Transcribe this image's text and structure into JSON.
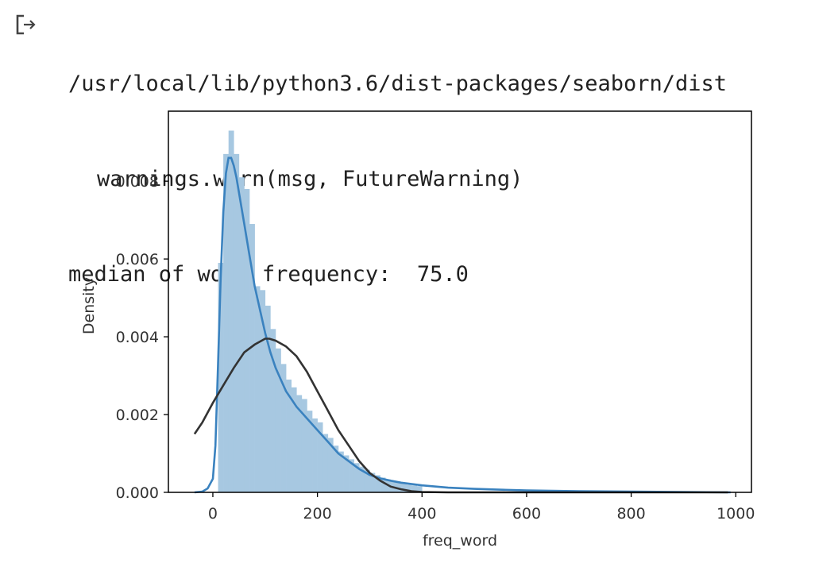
{
  "output": {
    "icon": "output-arrow-icon",
    "lines": [
      "/usr/local/lib/python3.6/dist-packages/seaborn/dist",
      "warnings.warn(msg, FutureWarning)",
      "median of word frequency:  75.0"
    ]
  },
  "chart_data": {
    "type": "histogram",
    "xlabel": "freq_word",
    "ylabel": "Density",
    "xlim": [
      -85,
      1030
    ],
    "ylim": [
      0,
      0.0098
    ],
    "xticks": [
      0,
      200,
      400,
      600,
      800,
      1000
    ],
    "xtick_labels": [
      "0",
      "200",
      "400",
      "600",
      "800",
      "1000"
    ],
    "yticks": [
      0,
      0.002,
      0.004,
      0.006,
      0.008
    ],
    "ytick_labels": [
      "0.000",
      "0.002",
      "0.004",
      "0.006",
      "0.008"
    ],
    "grid": false,
    "hist": {
      "color": "#a7c8e1",
      "bins": [
        {
          "x0": 10,
          "x1": 20,
          "density": 0.0059
        },
        {
          "x0": 20,
          "x1": 30,
          "density": 0.0087
        },
        {
          "x0": 30,
          "x1": 40,
          "density": 0.0093
        },
        {
          "x0": 40,
          "x1": 50,
          "density": 0.0087
        },
        {
          "x0": 50,
          "x1": 60,
          "density": 0.0081
        },
        {
          "x0": 60,
          "x1": 70,
          "density": 0.0078
        },
        {
          "x0": 70,
          "x1": 80,
          "density": 0.0069
        },
        {
          "x0": 80,
          "x1": 90,
          "density": 0.0053
        },
        {
          "x0": 90,
          "x1": 100,
          "density": 0.0052
        },
        {
          "x0": 100,
          "x1": 110,
          "density": 0.0048
        },
        {
          "x0": 110,
          "x1": 120,
          "density": 0.0042
        },
        {
          "x0": 120,
          "x1": 130,
          "density": 0.0037
        },
        {
          "x0": 130,
          "x1": 140,
          "density": 0.0033
        },
        {
          "x0": 140,
          "x1": 150,
          "density": 0.0029
        },
        {
          "x0": 150,
          "x1": 160,
          "density": 0.0027
        },
        {
          "x0": 160,
          "x1": 170,
          "density": 0.0025
        },
        {
          "x0": 170,
          "x1": 180,
          "density": 0.0024
        },
        {
          "x0": 180,
          "x1": 190,
          "density": 0.0021
        },
        {
          "x0": 190,
          "x1": 200,
          "density": 0.0019
        },
        {
          "x0": 200,
          "x1": 210,
          "density": 0.0018
        },
        {
          "x0": 210,
          "x1": 220,
          "density": 0.0015
        },
        {
          "x0": 220,
          "x1": 230,
          "density": 0.0014
        },
        {
          "x0": 230,
          "x1": 240,
          "density": 0.0012
        },
        {
          "x0": 240,
          "x1": 250,
          "density": 0.00105
        },
        {
          "x0": 250,
          "x1": 260,
          "density": 0.00095
        },
        {
          "x0": 260,
          "x1": 270,
          "density": 0.00085
        },
        {
          "x0": 270,
          "x1": 280,
          "density": 0.00075
        },
        {
          "x0": 280,
          "x1": 290,
          "density": 0.00066
        },
        {
          "x0": 290,
          "x1": 300,
          "density": 0.00058
        },
        {
          "x0": 300,
          "x1": 310,
          "density": 0.0005
        },
        {
          "x0": 310,
          "x1": 320,
          "density": 0.00044
        },
        {
          "x0": 320,
          "x1": 330,
          "density": 0.00038
        },
        {
          "x0": 330,
          "x1": 340,
          "density": 0.00033
        },
        {
          "x0": 340,
          "x1": 350,
          "density": 0.00029
        },
        {
          "x0": 350,
          "x1": 360,
          "density": 0.00026
        },
        {
          "x0": 360,
          "x1": 370,
          "density": 0.00023
        },
        {
          "x0": 370,
          "x1": 380,
          "density": 0.0002
        },
        {
          "x0": 380,
          "x1": 390,
          "density": 0.00018
        },
        {
          "x0": 390,
          "x1": 400,
          "density": 0.00016
        }
      ]
    },
    "series": [
      {
        "kind": "kde",
        "color": "#3a82bf",
        "x": [
          -35,
          -20,
          -10,
          0,
          5,
          10,
          15,
          20,
          25,
          30,
          35,
          40,
          45,
          50,
          60,
          70,
          80,
          90,
          100,
          110,
          120,
          130,
          140,
          150,
          160,
          180,
          200,
          220,
          240,
          260,
          280,
          300,
          320,
          340,
          360,
          400,
          450,
          500,
          600,
          700,
          800,
          900,
          990
        ],
        "y": [
          0,
          2e-05,
          0.0001,
          0.00035,
          0.0012,
          0.0033,
          0.0055,
          0.0072,
          0.0082,
          0.0086,
          0.0086,
          0.0084,
          0.0081,
          0.0077,
          0.0069,
          0.0061,
          0.0053,
          0.0047,
          0.0041,
          0.0036,
          0.0032,
          0.0029,
          0.0026,
          0.0024,
          0.0022,
          0.0019,
          0.0016,
          0.0013,
          0.001,
          0.0008,
          0.0006,
          0.00045,
          0.00036,
          0.0003,
          0.00025,
          0.00018,
          0.00012,
          9e-05,
          5e-05,
          3e-05,
          2e-05,
          1e-05,
          0
        ]
      },
      {
        "kind": "normal-fit",
        "color": "#333333",
        "x": [
          -35,
          -20,
          0,
          20,
          40,
          60,
          80,
          100,
          108,
          120,
          140,
          160,
          180,
          200,
          220,
          240,
          260,
          280,
          300,
          320,
          340,
          360,
          380,
          400,
          450,
          500,
          600,
          700,
          800,
          900,
          985
        ],
        "y": [
          0.0015,
          0.0018,
          0.0023,
          0.00275,
          0.0032,
          0.0036,
          0.0038,
          0.00395,
          0.00395,
          0.0039,
          0.00375,
          0.0035,
          0.0031,
          0.0026,
          0.0021,
          0.0016,
          0.0012,
          0.0008,
          0.0005,
          0.0003,
          0.00015,
          8e-05,
          3e-05,
          1e-05,
          0,
          0,
          0,
          0,
          0,
          0,
          0
        ]
      }
    ]
  }
}
